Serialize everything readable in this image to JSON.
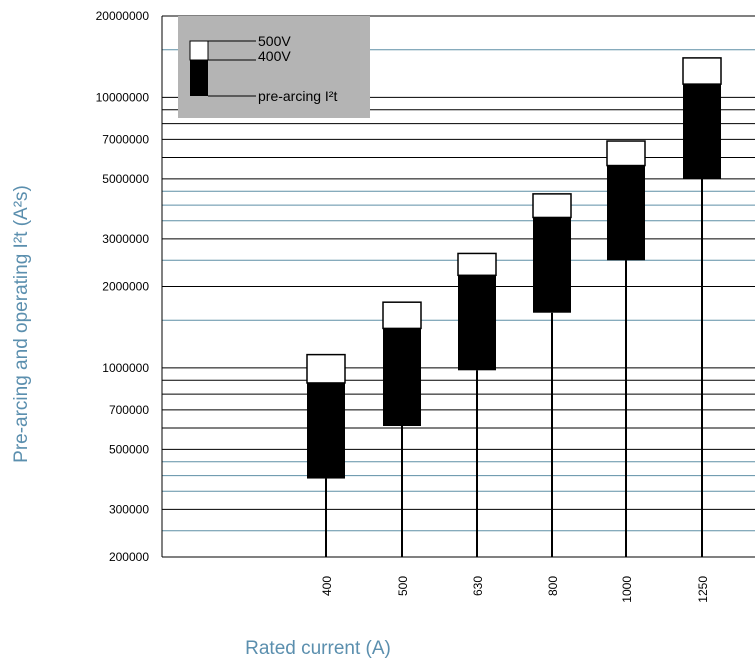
{
  "chart_data": {
    "type": "bar",
    "ylabel": "Pre-arcing and operating I²t (A²s)",
    "xlabel": "Rated current (A)",
    "yscale": "log",
    "ylim": [
      200000,
      20000000
    ],
    "y_tick_labels": [
      {
        "value": 20000000,
        "label": "20000000"
      },
      {
        "value": 10000000,
        "label": "10000000"
      },
      {
        "value": 7000000,
        "label": "7000000"
      },
      {
        "value": 5000000,
        "label": "5000000"
      },
      {
        "value": 3000000,
        "label": "3000000"
      },
      {
        "value": 2000000,
        "label": "2000000"
      },
      {
        "value": 1000000,
        "label": "1000000"
      },
      {
        "value": 700000,
        "label": "700000"
      },
      {
        "value": 500000,
        "label": "500000"
      },
      {
        "value": 300000,
        "label": "300000"
      },
      {
        "value": 200000,
        "label": "200000"
      }
    ],
    "gridlines_dark": [
      20000000,
      10000000,
      9000000,
      8000000,
      7000000,
      6000000,
      5000000,
      3000000,
      2000000,
      1000000,
      900000,
      800000,
      700000,
      600000,
      500000,
      300000,
      200000
    ],
    "gridlines_light": [
      15000000,
      4500000,
      4000000,
      3500000,
      2500000,
      1500000,
      450000,
      400000,
      350000,
      250000
    ],
    "categories": [
      "400",
      "500",
      "630",
      "800",
      "1000",
      "1250"
    ],
    "series": [
      {
        "name": "pre-arcing I²t",
        "color": "#000000",
        "low": [
          390000,
          610000,
          980000,
          1600000,
          2500000,
          5000000
        ],
        "high": [
          880000,
          1400000,
          2200000,
          3600000,
          5600000,
          11200000
        ]
      },
      {
        "name": "400V",
        "color": "#000000",
        "values": [
          880000,
          1400000,
          2200000,
          3600000,
          5600000,
          11200000
        ]
      },
      {
        "name": "500V",
        "color": "#ffffff",
        "values": [
          1120000,
          1750000,
          2650000,
          4400000,
          6900000,
          14000000
        ]
      }
    ],
    "legend": {
      "position": "top-left",
      "background": "#b4b4b4",
      "labels": {
        "v500": "500V",
        "v400": "400V",
        "prearc": "pre-arcing I²t"
      }
    },
    "grid": true
  }
}
